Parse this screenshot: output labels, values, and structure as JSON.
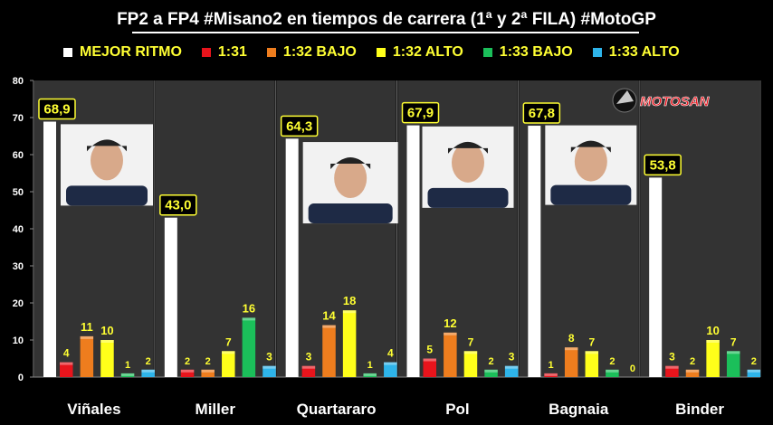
{
  "chart_data": {
    "type": "bar",
    "title": "FP2 a FP4 #Misano2 en tiempos de carrera (1ª y 2ª FILA) #MotoGP",
    "categories": [
      "Viñales",
      "Miller",
      "Quartararo",
      "Pol",
      "Bagnaia",
      "Binder"
    ],
    "best_pace": {
      "name": "MEJOR RITMO",
      "values": [
        68.9,
        43.0,
        64.3,
        67.9,
        67.8,
        53.8
      ],
      "labels": [
        "68,9",
        "43,0",
        "64,3",
        "67,9",
        "67,8",
        "53,8"
      ],
      "color": "#ffffff"
    },
    "series": [
      {
        "name": "1:31",
        "color": "#e8141c",
        "values": [
          4,
          2,
          3,
          5,
          1,
          3
        ]
      },
      {
        "name": "1:32 BAJO",
        "color": "#ee7d1e",
        "values": [
          11,
          2,
          14,
          12,
          8,
          2
        ]
      },
      {
        "name": "1:32 ALTO",
        "color": "#ffff1a",
        "values": [
          10,
          7,
          18,
          7,
          7,
          10
        ]
      },
      {
        "name": "1:33 BAJO",
        "color": "#1bbf5a",
        "values": [
          1,
          16,
          1,
          2,
          2,
          7
        ]
      },
      {
        "name": "1:33 ALTO",
        "color": "#2eb4ea",
        "values": [
          2,
          3,
          4,
          3,
          0,
          2
        ]
      }
    ],
    "ylim": [
      0,
      80
    ],
    "yticks": [
      0,
      10,
      20,
      30,
      40,
      50,
      60,
      70,
      80
    ],
    "grid": false,
    "legend": "top"
  },
  "brand": {
    "text": "MOTOSAN"
  }
}
